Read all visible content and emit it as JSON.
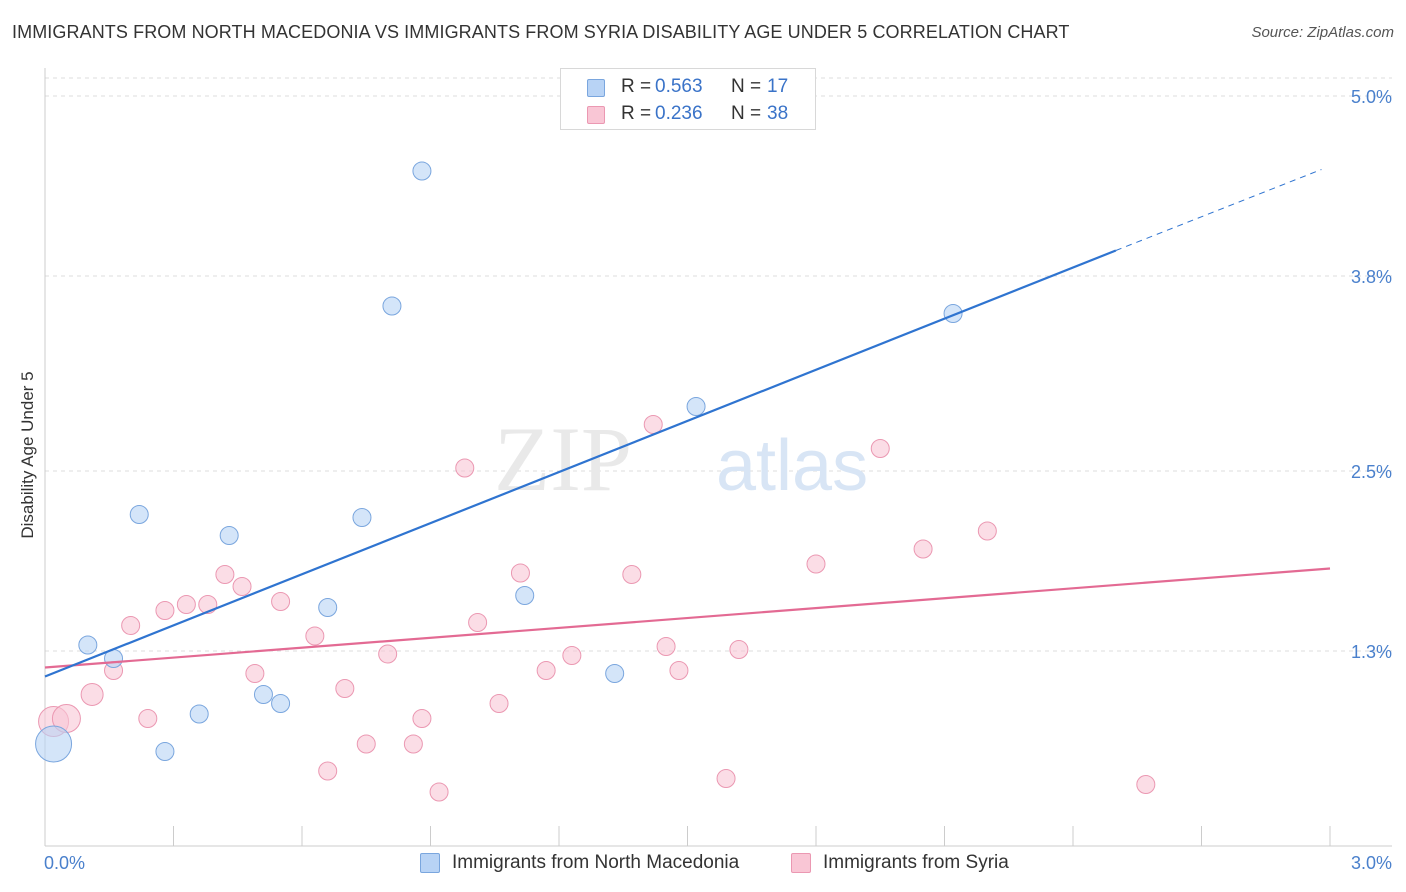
{
  "header": {
    "title": "IMMIGRANTS FROM NORTH MACEDONIA VS IMMIGRANTS FROM SYRIA DISABILITY AGE UNDER 5 CORRELATION CHART",
    "source": "Source: ZipAtlas.com"
  },
  "watermark": {
    "zip": "ZIP",
    "atlas": "atlas"
  },
  "legend": {
    "rows": [
      {
        "r_label": "R =",
        "r_value": "0.563",
        "n_label": "N =",
        "n_value": "17"
      },
      {
        "r_label": "R =",
        "r_value": "0.236",
        "n_label": "N =",
        "n_value": "38"
      }
    ]
  },
  "bottom_legend": {
    "series1": "Immigrants from North Macedonia",
    "series2": "Immigrants from Syria"
  },
  "colors": {
    "blue_fill": "#b8d3f5",
    "blue_stroke": "#7aa6de",
    "blue_line": "#2f74d0",
    "pink_fill": "#f9c6d5",
    "pink_stroke": "#eb98b2",
    "pink_line": "#e36a93",
    "tick_label": "#4a80cc",
    "grid": "#dddddd"
  },
  "chart_data": {
    "type": "scatter",
    "title": "IMMIGRANTS FROM NORTH MACEDONIA VS IMMIGRANTS FROM SYRIA DISABILITY AGE UNDER 5 CORRELATION CHART",
    "xlabel": "",
    "ylabel": "Disability Age Under 5",
    "xlim": [
      0.0,
      3.0
    ],
    "ylim": [
      0.0,
      5.0
    ],
    "x_tick_labels": [
      "0.0%",
      "3.0%"
    ],
    "y_ticks": [
      1.3,
      2.5,
      3.8,
      5.0
    ],
    "y_tick_labels": [
      "1.3%",
      "2.5%",
      "3.8%",
      "5.0%"
    ],
    "grid": true,
    "series": [
      {
        "name": "Immigrants from North Macedonia",
        "points": [
          [
            0.02,
            0.68,
            18
          ],
          [
            0.1,
            1.34,
            9
          ],
          [
            0.16,
            1.25,
            9
          ],
          [
            0.22,
            2.21,
            9
          ],
          [
            0.28,
            0.63,
            9
          ],
          [
            0.36,
            0.88,
            9
          ],
          [
            0.43,
            2.07,
            9
          ],
          [
            0.51,
            1.01,
            9
          ],
          [
            0.55,
            0.95,
            9
          ],
          [
            0.66,
            1.59,
            9
          ],
          [
            0.74,
            2.19,
            9
          ],
          [
            0.81,
            3.6,
            9
          ],
          [
            0.88,
            4.5,
            9
          ],
          [
            1.12,
            1.67,
            9
          ],
          [
            1.33,
            1.15,
            9
          ],
          [
            1.52,
            2.93,
            9
          ],
          [
            2.12,
            3.55,
            9
          ]
        ],
        "trend": {
          "x": [
            0.0,
            2.5
          ],
          "y": [
            1.13,
            3.97
          ]
        },
        "trend_dashed": {
          "x": [
            2.5,
            2.98
          ],
          "y": [
            3.97,
            4.51
          ]
        }
      },
      {
        "name": "Immigrants from Syria",
        "points": [
          [
            0.02,
            0.83,
            15
          ],
          [
            0.05,
            0.85,
            14
          ],
          [
            0.11,
            1.01,
            11
          ],
          [
            0.16,
            1.17,
            9
          ],
          [
            0.2,
            1.47,
            9
          ],
          [
            0.24,
            0.85,
            9
          ],
          [
            0.28,
            1.57,
            9
          ],
          [
            0.33,
            1.61,
            9
          ],
          [
            0.38,
            1.61,
            9
          ],
          [
            0.42,
            1.81,
            9
          ],
          [
            0.46,
            1.73,
            9
          ],
          [
            0.49,
            1.15,
            9
          ],
          [
            0.55,
            1.63,
            9
          ],
          [
            0.63,
            1.4,
            9
          ],
          [
            0.66,
            0.5,
            9
          ],
          [
            0.7,
            1.05,
            9
          ],
          [
            0.75,
            0.68,
            9
          ],
          [
            0.8,
            1.28,
            9
          ],
          [
            0.86,
            0.68,
            9
          ],
          [
            0.88,
            0.85,
            9
          ],
          [
            0.92,
            0.36,
            9
          ],
          [
            0.98,
            2.52,
            9
          ],
          [
            1.01,
            1.49,
            9
          ],
          [
            1.06,
            0.95,
            9
          ],
          [
            1.11,
            1.82,
            9
          ],
          [
            1.17,
            1.17,
            9
          ],
          [
            1.23,
            1.27,
            9
          ],
          [
            1.37,
            1.81,
            9
          ],
          [
            1.42,
            2.81,
            9
          ],
          [
            1.45,
            1.33,
            9
          ],
          [
            1.48,
            1.17,
            9
          ],
          [
            1.59,
            0.45,
            9
          ],
          [
            1.62,
            1.31,
            9
          ],
          [
            1.8,
            1.88,
            9
          ],
          [
            1.95,
            2.65,
            9
          ],
          [
            2.05,
            1.98,
            9
          ],
          [
            2.2,
            2.1,
            9
          ],
          [
            2.57,
            0.41,
            9
          ]
        ],
        "trend": {
          "x": [
            0.0,
            3.0
          ],
          "y": [
            1.19,
            1.85
          ]
        }
      }
    ]
  }
}
